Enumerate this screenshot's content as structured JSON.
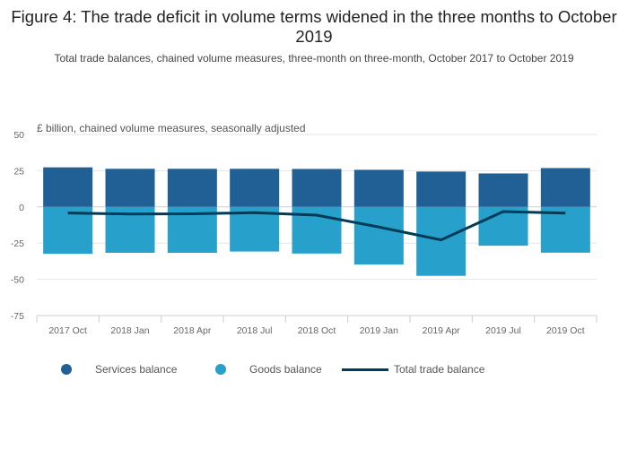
{
  "title": "Figure 4: The trade deficit in volume terms widened in the three months to October 2019",
  "subtitle": "Total trade balances, chained volume measures, three-month on three-month, October 2017 to October 2019",
  "chart_data": {
    "type": "bar",
    "stacked": true,
    "ylabel": "£ billion, chained volume measures, seasonally adjusted",
    "ylim": [
      -75,
      50
    ],
    "yticks": [
      50,
      25,
      0,
      -25,
      -50,
      -75
    ],
    "ytick_labels": [
      "50",
      "25",
      "0",
      "-25",
      "-50",
      "-75"
    ],
    "grid": true,
    "legend_position": "bottom",
    "categories": [
      "2017 Oct",
      "2018 Jan",
      "2018 Apr",
      "2018 Jul",
      "2018 Oct",
      "2019 Jan",
      "2019 Apr",
      "2019 Jul",
      "2019 Oct"
    ],
    "series": [
      {
        "name": "Services balance",
        "kind": "bar",
        "color": "#206095",
        "values": [
          27.3,
          26.3,
          26.3,
          26.3,
          26.2,
          25.6,
          24.4,
          23.1,
          26.8
        ]
      },
      {
        "name": "Goods balance",
        "kind": "bar",
        "color": "#27a0cc",
        "values": [
          -32.4,
          -31.7,
          -31.7,
          -30.8,
          -32.2,
          -39.8,
          -47.6,
          -26.8,
          -31.6
        ]
      },
      {
        "name": "Total trade balance",
        "kind": "line",
        "color": "#003c57",
        "values": [
          -4.2,
          -4.9,
          -4.8,
          -4.0,
          -5.7,
          -13.9,
          -22.8,
          -3.2,
          -4.3
        ]
      }
    ]
  }
}
